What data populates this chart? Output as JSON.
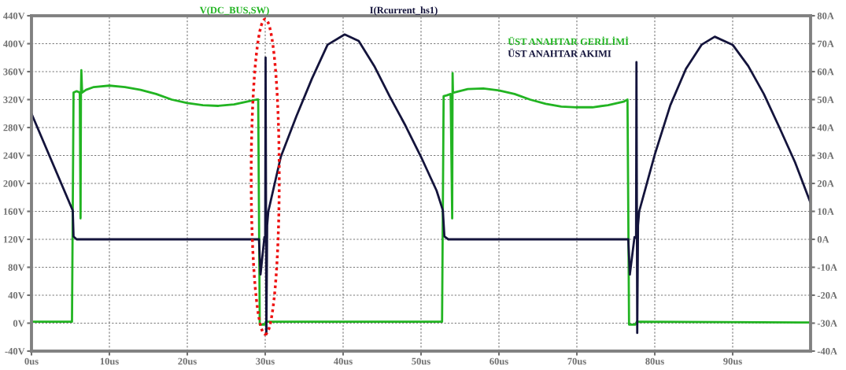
{
  "chart_data": {
    "type": "line",
    "annotations": [
      "V(DC_BUS,SW)",
      "I(Rcurrent_hs1)"
    ],
    "xlim": [
      0,
      100
    ],
    "ylim": [
      -40,
      440
    ],
    "y2lim": [
      -40,
      80
    ],
    "xticks": [
      {
        "value": 0,
        "label": "0us"
      },
      {
        "value": 10,
        "label": "10us"
      },
      {
        "value": 20,
        "label": "20us"
      },
      {
        "value": 30,
        "label": "30us"
      },
      {
        "value": 40,
        "label": "40us"
      },
      {
        "value": 50,
        "label": "50us"
      },
      {
        "value": 60,
        "label": "60us"
      },
      {
        "value": 70,
        "label": "70us"
      },
      {
        "value": 80,
        "label": "80us"
      },
      {
        "value": 90,
        "label": "90us"
      }
    ],
    "yticks": [
      {
        "value": -40,
        "label": "-40V"
      },
      {
        "value": 0,
        "label": "0V"
      },
      {
        "value": 40,
        "label": "40V"
      },
      {
        "value": 80,
        "label": "80V"
      },
      {
        "value": 120,
        "label": "120V"
      },
      {
        "value": 160,
        "label": "160V"
      },
      {
        "value": 200,
        "label": "200V"
      },
      {
        "value": 240,
        "label": "240V"
      },
      {
        "value": 280,
        "label": "280V"
      },
      {
        "value": 320,
        "label": "320V"
      },
      {
        "value": 360,
        "label": "360V"
      },
      {
        "value": 400,
        "label": "400V"
      },
      {
        "value": 440,
        "label": "440V"
      }
    ],
    "y2ticks": [
      {
        "value": -40,
        "label": "-40A"
      },
      {
        "value": -30,
        "label": "-30A"
      },
      {
        "value": -20,
        "label": "-20A"
      },
      {
        "value": -10,
        "label": "-10A"
      },
      {
        "value": 0,
        "label": "0A"
      },
      {
        "value": 10,
        "label": "10A"
      },
      {
        "value": 20,
        "label": "20A"
      },
      {
        "value": 30,
        "label": "30A"
      },
      {
        "value": 40,
        "label": "40A"
      },
      {
        "value": 50,
        "label": "50A"
      },
      {
        "value": 60,
        "label": "60A"
      },
      {
        "value": 70,
        "label": "70A"
      },
      {
        "value": 80,
        "label": "80A"
      }
    ],
    "grid": true,
    "legend": "top right",
    "line_style": "solid",
    "marker": "none",
    "series": [
      {
        "name": "ÜST ANAHTAR GERİLİMİ",
        "color": "#22b422",
        "x": [
          0,
          5.2,
          5.4,
          5.8,
          6.2,
          6.3,
          6.35,
          6.4,
          6.5,
          7,
          8,
          10,
          12,
          14,
          16,
          18,
          20,
          22,
          24,
          26,
          28,
          28.9,
          29.1,
          29.3,
          29.9,
          30.1,
          40,
          52.7,
          52.9,
          53.3,
          53.8,
          54.0,
          54.05,
          54.1,
          54.2,
          56,
          58,
          60,
          62,
          64,
          66,
          68,
          70,
          72,
          74,
          76,
          76.5,
          76.7,
          77.5,
          77.7,
          100
        ],
        "values": [
          2,
          2,
          330,
          332,
          330,
          150,
          330,
          362,
          330,
          334,
          338,
          340,
          338,
          334,
          328,
          320,
          315,
          312,
          311,
          313,
          318,
          320,
          320,
          -2,
          -2,
          2,
          2,
          2,
          325,
          326,
          328,
          150,
          358,
          330,
          330,
          335,
          336,
          333,
          328,
          320,
          314,
          310,
          309,
          309,
          312,
          317,
          320,
          -2,
          -2,
          2,
          1
        ]
      },
      {
        "name": "ÜST ANAHTAR AKIMI",
        "color": "#14143c",
        "axis": "y2",
        "x": [
          0,
          5.3,
          5.4,
          5.8,
          29.2,
          29.4,
          29.9,
          30.0,
          30.05,
          30.15,
          30.25,
          30.4,
          32,
          34,
          36,
          38,
          40.2,
          42,
          44,
          46,
          48,
          50,
          52,
          52.8,
          53.0,
          53.5,
          76.6,
          76.8,
          77.4,
          77.6,
          77.65,
          77.75,
          77.85,
          78.0,
          80,
          82,
          84,
          86,
          87.7,
          90,
          92,
          94,
          96,
          98,
          100
        ],
        "values": [
          45,
          10.3,
          1,
          0,
          0,
          -12.6,
          0.8,
          0.5,
          65,
          -34,
          5,
          10,
          29.5,
          44,
          57.5,
          69.6,
          73.3,
          71,
          62,
          51,
          40.7,
          29.5,
          17.4,
          10.4,
          1,
          0,
          0,
          -12.6,
          0.8,
          0.5,
          63.4,
          -33.5,
          5,
          10,
          30.3,
          48,
          61,
          69.6,
          72.5,
          69.6,
          62,
          52,
          40,
          27.6,
          13
        ]
      }
    ]
  }
}
